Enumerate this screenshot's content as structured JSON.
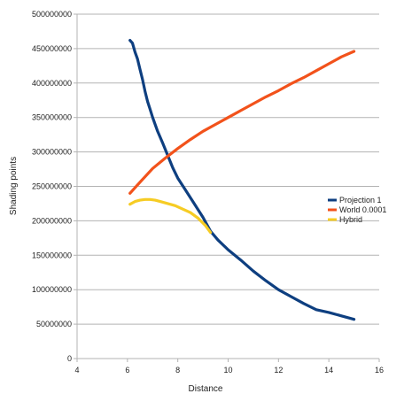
{
  "chart_data": {
    "type": "line",
    "xlabel": "Distance",
    "ylabel": "Shading points",
    "xlim": [
      4,
      16
    ],
    "ylim": [
      0,
      500000000
    ],
    "x_ticks": [
      "4",
      "6",
      "8",
      "10",
      "12",
      "14",
      "16"
    ],
    "y_ticks": [
      "0",
      "50000000",
      "100000000",
      "150000000",
      "200000000",
      "250000000",
      "300000000",
      "350000000",
      "400000000",
      "450000000",
      "500000000"
    ],
    "grid": "horizontal",
    "legend_position": "right",
    "series": [
      {
        "name": "Projection 1",
        "color": "#0e3f80",
        "points": [
          [
            6.1,
            462000000
          ],
          [
            6.2,
            458000000
          ],
          [
            6.3,
            445000000
          ],
          [
            6.4,
            435000000
          ],
          [
            6.5,
            420000000
          ],
          [
            6.6,
            405000000
          ],
          [
            6.7,
            388000000
          ],
          [
            6.8,
            373000000
          ],
          [
            6.9,
            362000000
          ],
          [
            7.0,
            350000000
          ],
          [
            7.2,
            330000000
          ],
          [
            7.4,
            313000000
          ],
          [
            7.6,
            295000000
          ],
          [
            7.8,
            277000000
          ],
          [
            8.0,
            262000000
          ],
          [
            8.3,
            245000000
          ],
          [
            8.6,
            228000000
          ],
          [
            9.0,
            205000000
          ],
          [
            9.3,
            185000000
          ],
          [
            9.6,
            172000000
          ],
          [
            10.0,
            158000000
          ],
          [
            10.5,
            143000000
          ],
          [
            11.0,
            127000000
          ],
          [
            11.5,
            113000000
          ],
          [
            12.0,
            100000000
          ],
          [
            12.5,
            90000000
          ],
          [
            13.0,
            80000000
          ],
          [
            13.5,
            71000000
          ],
          [
            14.0,
            67000000
          ],
          [
            14.5,
            62000000
          ],
          [
            15.0,
            57000000
          ]
        ]
      },
      {
        "name": "World 0.0001",
        "color": "#f2521b",
        "points": [
          [
            6.1,
            240000000
          ],
          [
            6.5,
            256000000
          ],
          [
            7.0,
            276000000
          ],
          [
            7.5,
            291000000
          ],
          [
            8.0,
            305000000
          ],
          [
            8.5,
            318000000
          ],
          [
            9.0,
            330000000
          ],
          [
            9.5,
            340000000
          ],
          [
            10.0,
            350000000
          ],
          [
            10.5,
            360000000
          ],
          [
            11.0,
            370000000
          ],
          [
            11.5,
            380000000
          ],
          [
            12.0,
            389000000
          ],
          [
            12.5,
            399000000
          ],
          [
            13.0,
            408000000
          ],
          [
            13.5,
            418000000
          ],
          [
            14.0,
            428000000
          ],
          [
            14.5,
            438000000
          ],
          [
            15.0,
            446000000
          ]
        ]
      },
      {
        "name": "Hybrid",
        "color": "#f6cc24",
        "points": [
          [
            6.1,
            224000000
          ],
          [
            6.3,
            228000000
          ],
          [
            6.5,
            230000000
          ],
          [
            6.7,
            231000000
          ],
          [
            6.9,
            231000000
          ],
          [
            7.1,
            230000000
          ],
          [
            7.3,
            228000000
          ],
          [
            7.6,
            225000000
          ],
          [
            7.9,
            222000000
          ],
          [
            8.2,
            217000000
          ],
          [
            8.5,
            212000000
          ],
          [
            8.8,
            204000000
          ],
          [
            9.1,
            193000000
          ],
          [
            9.3,
            183000000
          ]
        ]
      }
    ]
  }
}
